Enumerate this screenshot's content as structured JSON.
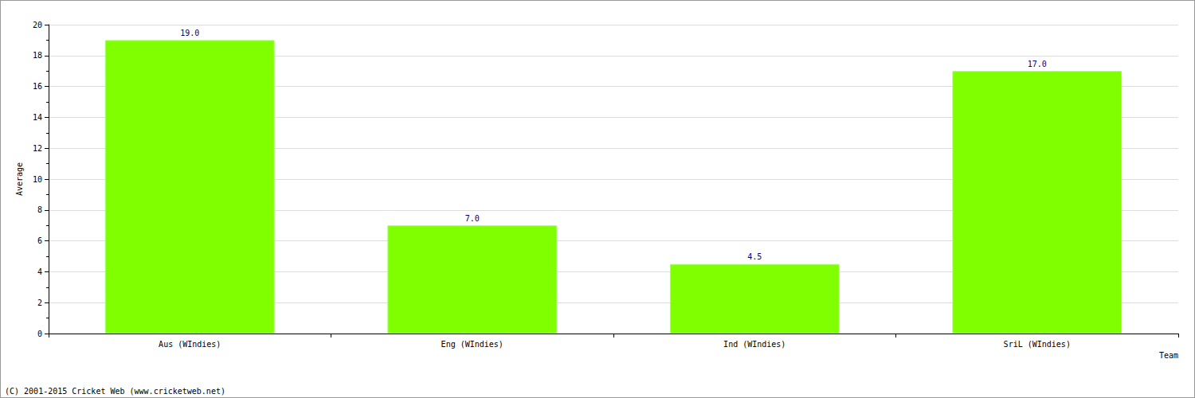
{
  "chart_data": {
    "type": "bar",
    "categories": [
      "Aus (WIndies)",
      "Eng (WIndies)",
      "Ind (WIndies)",
      "SriL (WIndies)"
    ],
    "values": [
      19,
      7,
      4.5,
      17
    ],
    "value_labels": [
      "19.0",
      "7.0",
      "4.5",
      "17.0"
    ],
    "data_labels": true,
    "color": "#80ff00",
    "x_label": "Team",
    "y_label": "Average",
    "ylim": [
      0,
      20
    ],
    "yticks": [
      0,
      2,
      4,
      6,
      8,
      10,
      12,
      14,
      16,
      18,
      20
    ],
    "grid": true,
    "annotations": [
      "(C) 2001-2015 Cricket Web (www.cricketweb.net)"
    ]
  }
}
